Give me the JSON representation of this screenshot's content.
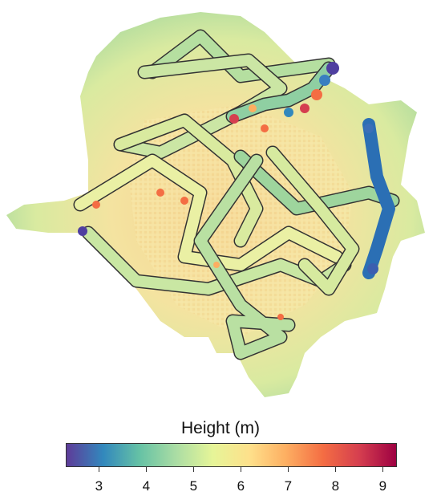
{
  "colorbar": {
    "title": "Height (m)",
    "min": 2.3,
    "max": 9.3,
    "ticks": [
      "3",
      "4",
      "5",
      "6",
      "7",
      "8",
      "9"
    ],
    "colors": [
      "#5e3c99",
      "#3288bd",
      "#66c2a5",
      "#abdda4",
      "#e6f598",
      "#fee08b",
      "#fdae61",
      "#f46d43",
      "#d53e4f",
      "#9e0142"
    ]
  },
  "map": {
    "canopy_height_range": [
      4.5,
      7.0
    ],
    "track_height_range": [
      2.5,
      9.0
    ]
  }
}
